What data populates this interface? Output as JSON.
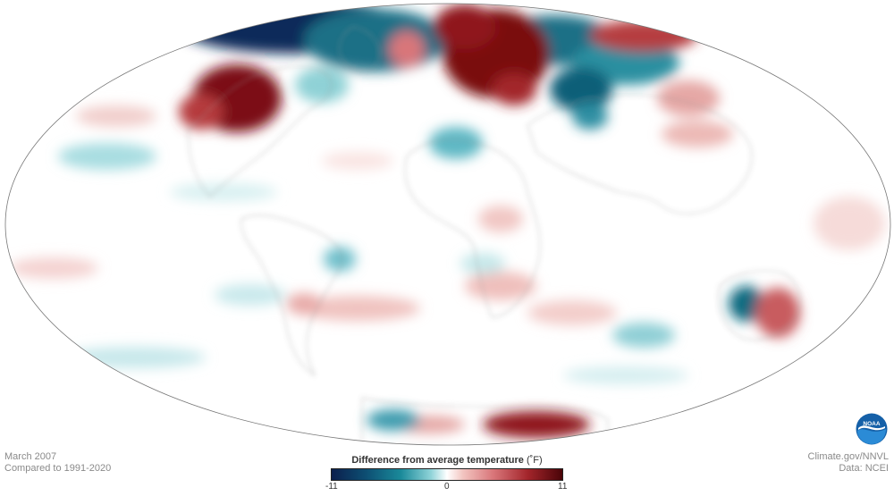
{
  "caption": {
    "date": "March 2007",
    "baseline": "Compared to 1991-2020"
  },
  "credits": {
    "source": "Climate.gov/NNVL",
    "data": "Data: NCEI"
  },
  "legend": {
    "title": "Difference from average temperature",
    "unit": "(˚F)",
    "min_label": "-11",
    "mid_label": "0",
    "max_label": "11",
    "scale_colors": [
      "#0b1f4d",
      "#1a8a9a",
      "#ffffff",
      "#d9767a",
      "#4a0408"
    ]
  },
  "logo": {
    "text": "NOAA",
    "icon": "noaa-logo-icon"
  },
  "map": {
    "projection": "mollweide",
    "variable": "temperature anomaly"
  }
}
